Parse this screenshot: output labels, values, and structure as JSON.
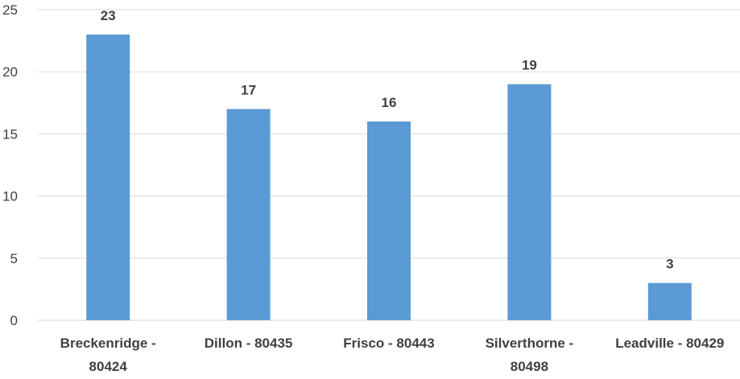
{
  "chart_data": {
    "type": "bar",
    "title": "",
    "xlabel": "",
    "ylabel": "",
    "categories": [
      [
        "Breckenridge -",
        "80424"
      ],
      [
        "Dillon - 80435"
      ],
      [
        "Frisco - 80443"
      ],
      [
        "Silverthorne -",
        "80498"
      ],
      [
        "Leadville - 80429"
      ]
    ],
    "values": [
      23,
      17,
      16,
      19,
      3
    ],
    "data_labels": [
      "23",
      "17",
      "16",
      "19",
      "3"
    ],
    "ylim": [
      0,
      25
    ],
    "yticks": [
      0,
      5,
      10,
      15,
      20,
      25
    ],
    "grid": true,
    "legend": "none",
    "colors": {
      "bar": "#5b9bd5",
      "grid": "#d9d9d9",
      "text": "#404040"
    }
  }
}
